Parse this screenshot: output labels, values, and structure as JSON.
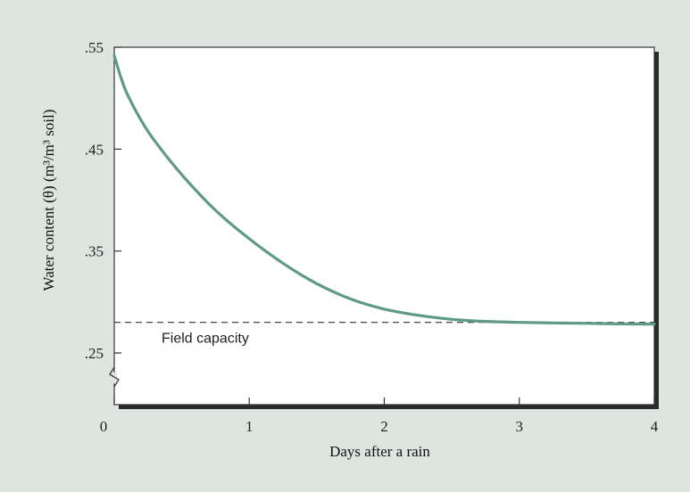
{
  "chart_data": {
    "type": "line",
    "xlabel": "Days after a rain",
    "ylabel": "Water content (θ) (m³/m³ soil)",
    "xlim": [
      0,
      4
    ],
    "ylim": [
      0.2,
      0.55
    ],
    "x_ticks": [
      {
        "value": 0,
        "label": "0"
      },
      {
        "value": 1,
        "label": "1"
      },
      {
        "value": 2,
        "label": "2"
      },
      {
        "value": 3,
        "label": "3"
      },
      {
        "value": 4,
        "label": "4"
      }
    ],
    "y_ticks": [
      {
        "value": 0.25,
        "label": ".25"
      },
      {
        "value": 0.35,
        "label": ".35"
      },
      {
        "value": 0.45,
        "label": ".45"
      },
      {
        "value": 0.55,
        "label": ".55"
      }
    ],
    "y_axis_break": true,
    "series": [
      {
        "color": "#5f9a84",
        "x": [
          0,
          0.05,
          0.1,
          0.2,
          0.3,
          0.5,
          0.75,
          1.0,
          1.25,
          1.5,
          1.75,
          2.0,
          2.25,
          2.5,
          2.75,
          3.0,
          3.25,
          3.5,
          3.75,
          4.0
        ],
        "y": [
          0.542,
          0.52,
          0.503,
          0.478,
          0.458,
          0.425,
          0.39,
          0.362,
          0.338,
          0.318,
          0.303,
          0.293,
          0.287,
          0.283,
          0.281,
          0.28,
          0.2795,
          0.279,
          0.2785,
          0.2783
        ]
      }
    ],
    "reference_line": {
      "value": 0.28,
      "label": "Field capacity",
      "style": "dashed",
      "color": "#333333"
    },
    "grid": false,
    "colors": {
      "background": "#dde5e0",
      "plot_area": "#ffffff",
      "curve": "#5f9a84"
    }
  }
}
